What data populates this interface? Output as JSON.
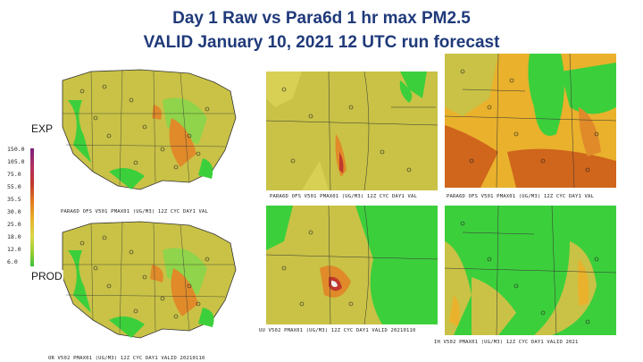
{
  "header": {
    "title_line1": "Day 1 Raw vs Para6d  1 hr max PM2.5",
    "title_line2": "VALID January 10, 2021 12 UTC run forecast"
  },
  "labels": {
    "exp": "EXP",
    "prod": "PROD"
  },
  "legend": {
    "values": [
      "150.0",
      "105.0",
      "75.0",
      "55.0",
      "35.5",
      "30.0",
      "25.0",
      "18.0",
      "12.0",
      "6.0"
    ]
  },
  "captions": {
    "conus_exp": "PARA6D OFS V501  PMAX01 (UG/M3) 12Z CYC DAY1 VAL",
    "conus_prod": "OR V502  PMAX01 (UG/M3) 12Z CYC DAY1 VALID 20210110",
    "west_exp": "PARA6D OFS V501  PMAX01 (UG/M3) 12Z CYC DAY1 VAL",
    "west_prod": "UU V502  PMAX01 (UG/M3) 12Z CYC DAY1 VALID 20210110",
    "east_exp": "PARA6D OFS V501  PMAX01 (UG/M3) 12Z CYC DAY1 VAL",
    "east_prod": "IH V502  PMAX01 (UG/M3) 12Z CYC DAY1 VALID 2021"
  },
  "colors": {
    "background_field": "#c9c246",
    "green": "#3ccf3c",
    "light_green": "#8fd44a",
    "orange": "#e08a2a",
    "dark_orange": "#d0651c",
    "red": "#c0392b",
    "title": "#1f3a7a"
  }
}
